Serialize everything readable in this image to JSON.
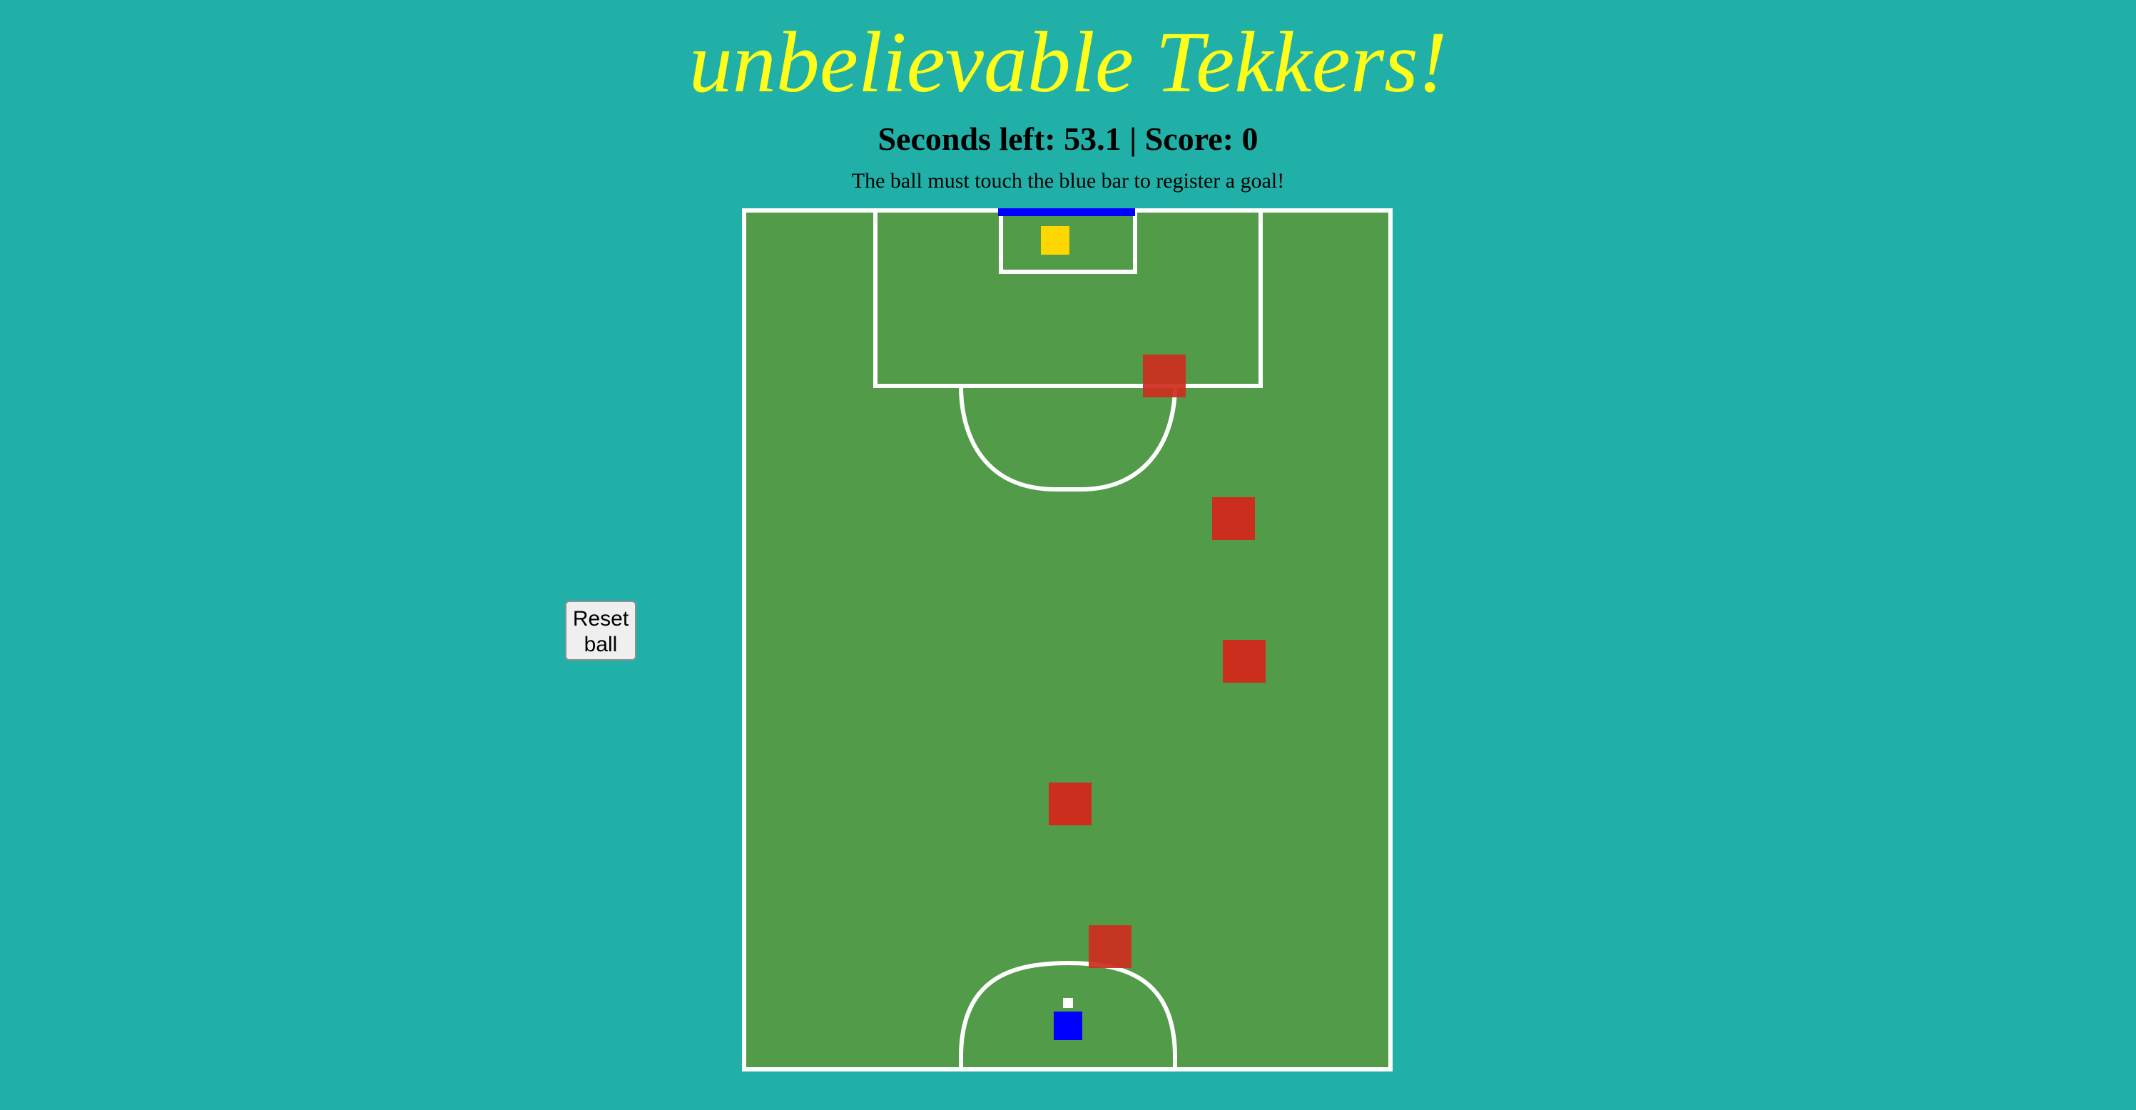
{
  "title": "unbelievable Tekkers!",
  "status": "Seconds left: 53.1 | Score: 0",
  "instruction": "The ball must touch the blue bar to register a goal!",
  "reset_button": {
    "label": "Reset\nball"
  },
  "colors": {
    "background": "#20b0a8",
    "title": "#ffff1a",
    "pitch": "#529b48",
    "lines": "#ffffff",
    "goal_bar": "#0000ff",
    "player": "#0000ff",
    "goalkeeper": "#ffd700",
    "defenders": "#cc2e1e",
    "ball": "#ffffff"
  },
  "entities": {
    "goal_bar": "blue goal bar",
    "player": "blue player",
    "goalkeeper": "yellow goalkeeper",
    "defender_count": 5,
    "ball": "ball"
  }
}
